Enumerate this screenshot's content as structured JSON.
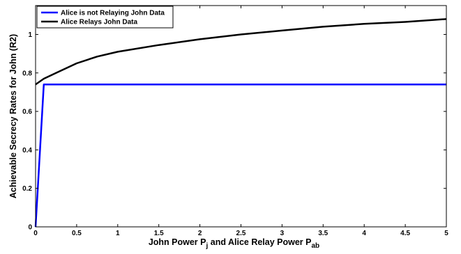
{
  "chart_data": {
    "type": "line",
    "xlabel": {
      "text": "John Power P",
      "sub1": "j",
      "mid": " and Alice Relay Power P",
      "sub2": "ab"
    },
    "ylabel": "Achievable Secrecy Rates for John (R2)",
    "xlim": [
      0,
      5
    ],
    "ylim": [
      0,
      1.15
    ],
    "xticks": [
      0,
      0.5,
      1,
      1.5,
      2,
      2.5,
      3,
      3.5,
      4,
      4.5,
      5
    ],
    "xtick_labels": [
      "0",
      "0.5",
      "1",
      "1.5",
      "2",
      "2.5",
      "3",
      "3.5",
      "4",
      "4.5",
      "5"
    ],
    "yticks": [
      0,
      0.2,
      0.4,
      0.6,
      0.8,
      1
    ],
    "ytick_labels": [
      "0",
      "0.2",
      "0.4",
      "0.6",
      "0.8",
      "1"
    ],
    "legend_position": "top-left",
    "series": [
      {
        "name": "Alice is not Relaying John Data",
        "color": "#0000ff",
        "x": [
          0,
          0.1,
          0.5,
          1,
          1.5,
          2,
          2.5,
          3,
          3.5,
          4,
          4.5,
          5
        ],
        "y": [
          0,
          0.74,
          0.74,
          0.74,
          0.74,
          0.74,
          0.74,
          0.74,
          0.74,
          0.74,
          0.74,
          0.74
        ]
      },
      {
        "name": "Alice Relays John Data",
        "color": "#000000",
        "x": [
          0,
          0.1,
          0.25,
          0.5,
          0.75,
          1,
          1.5,
          2,
          2.5,
          3,
          3.5,
          4,
          4.5,
          5
        ],
        "y": [
          0.74,
          0.77,
          0.8,
          0.85,
          0.885,
          0.91,
          0.945,
          0.975,
          1.0,
          1.02,
          1.04,
          1.055,
          1.065,
          1.08
        ]
      }
    ]
  }
}
